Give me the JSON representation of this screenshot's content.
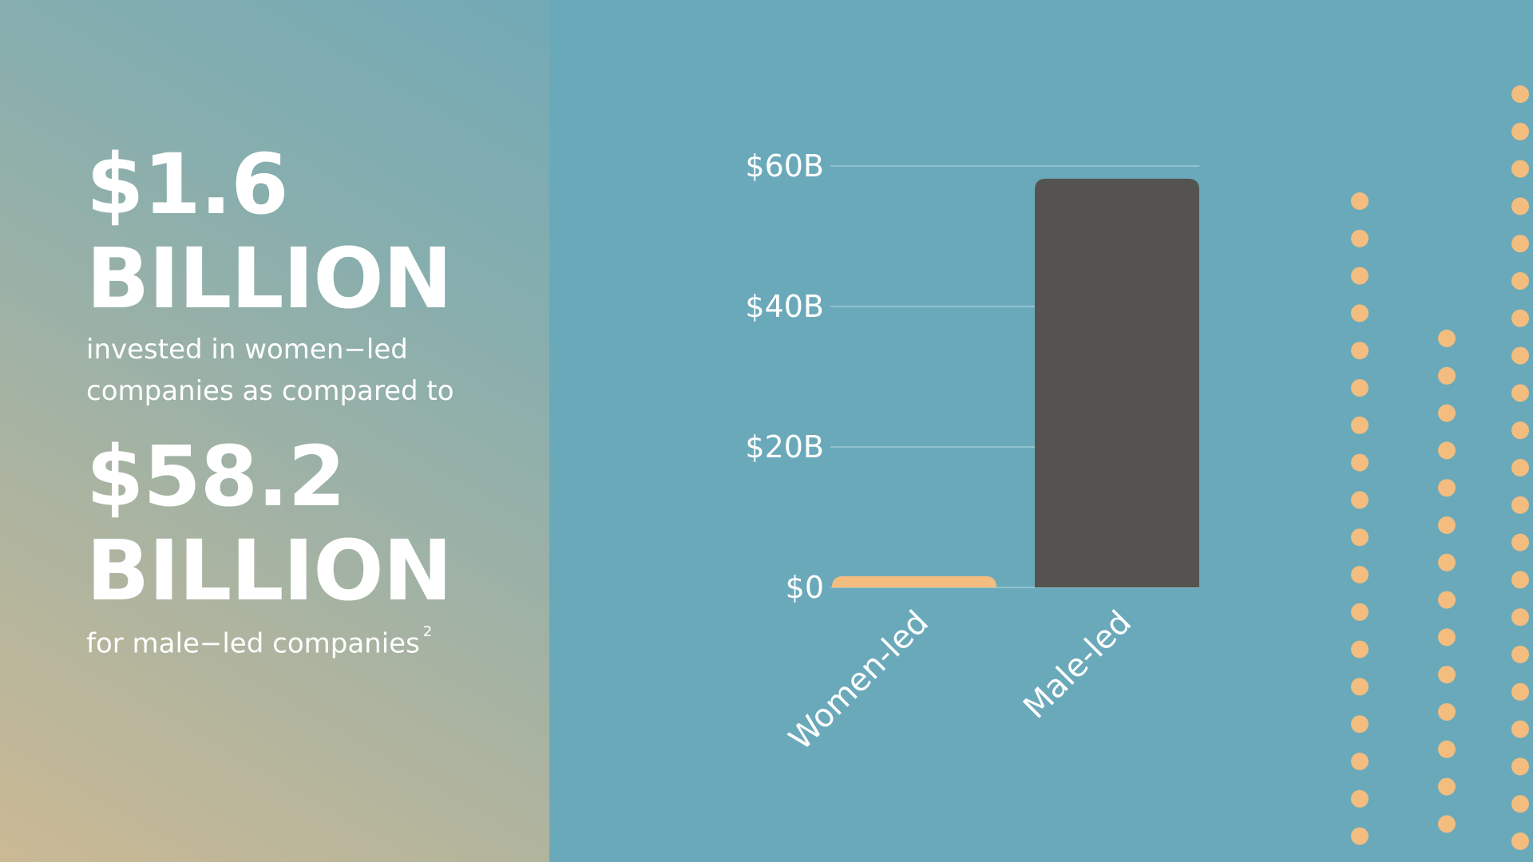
{
  "headline": {
    "women_amount": "$1.6",
    "women_unit": "BILLION",
    "women_desc": "invested in women−led companies as compared to",
    "men_amount": "$58.2",
    "men_unit": "BILLION",
    "men_desc": "for male−led companies",
    "footnote": "2"
  },
  "chart_data": {
    "type": "bar",
    "categories": [
      "Women-led",
      "Male-led"
    ],
    "values": [
      1.6,
      58.2
    ],
    "colors": [
      "#f3bd80",
      "#545350"
    ],
    "ylim": [
      0,
      60
    ],
    "yticks": [
      0,
      20,
      40,
      60
    ],
    "ytick_labels": [
      "$0",
      "$20B",
      "$40B",
      "$60B"
    ],
    "grid": true,
    "xlabel": "",
    "ylabel": ""
  },
  "decoration": {
    "dot_color": "#f3bd80"
  }
}
